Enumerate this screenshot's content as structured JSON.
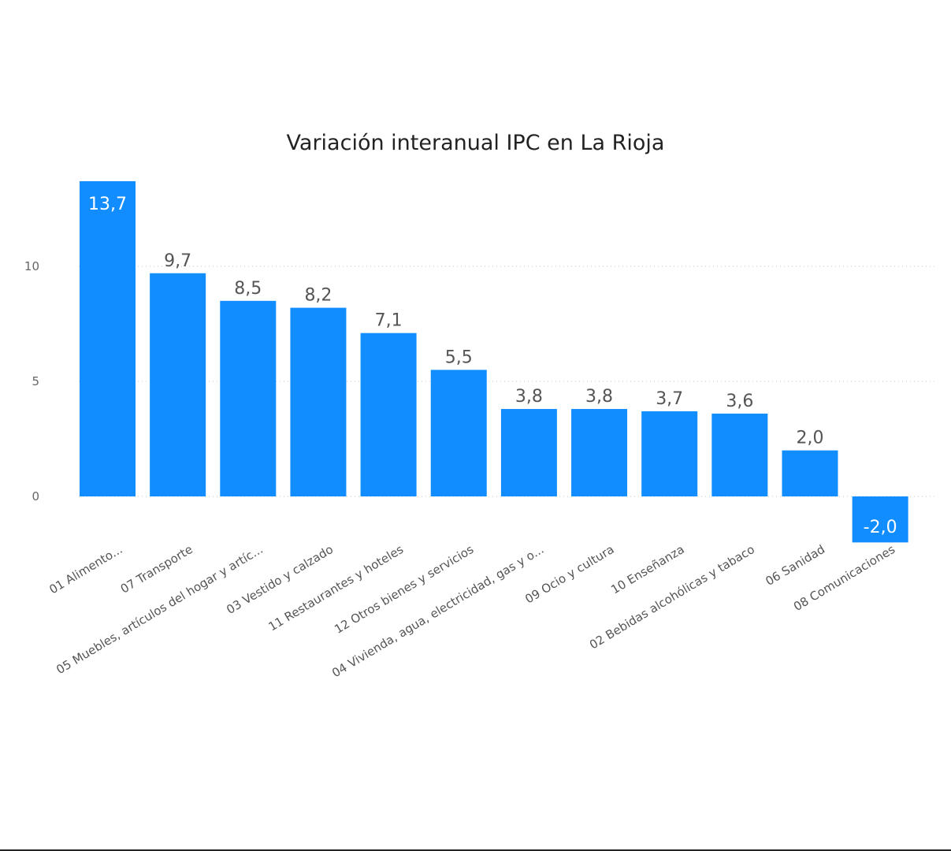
{
  "chart_data": {
    "type": "bar",
    "title": "Variación interanual IPC en La Rioja",
    "categories": [
      "01 Alimento...",
      "07 Transporte",
      "05 Muebles, artículos del hogar y artíc...",
      "03 Vestido y calzado",
      "11 Restaurantes y hoteles",
      "12 Otros bienes y servicios",
      "04 Vivienda, agua, electricidad, gas y o...",
      "09 Ocio y cultura",
      "10 Enseñanza",
      "02 Bebidas alcohólicas y tabaco",
      "06 Sanidad",
      "08 Comunicaciones"
    ],
    "values": [
      13.7,
      9.7,
      8.5,
      8.2,
      7.1,
      5.5,
      3.8,
      3.8,
      3.7,
      3.6,
      2.0,
      -2.0
    ],
    "data_labels": [
      "13,7",
      "9,7",
      "8,5",
      "8,2",
      "7,1",
      "5,5",
      "3,8",
      "3,8",
      "3,7",
      "3,6",
      "2,0",
      "-2,0"
    ],
    "y_ticks": [
      0,
      5,
      10
    ],
    "y_tick_labels": [
      "0",
      "5",
      "10"
    ],
    "ylim": [
      -2.0,
      13.7
    ],
    "grid": true,
    "bar_color": "#118DFF",
    "label_color": "#555555",
    "inside_label_color": "#ffffff"
  }
}
